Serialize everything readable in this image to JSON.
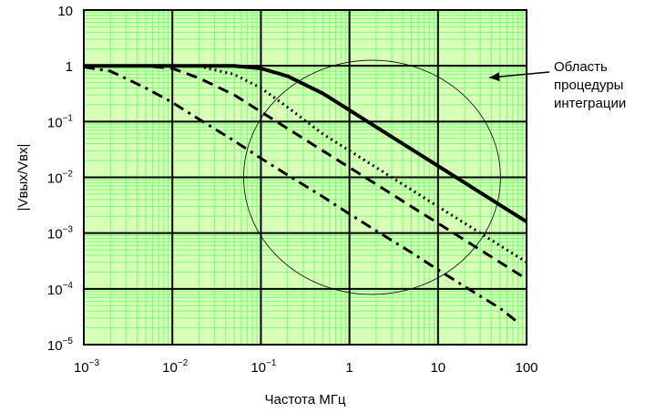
{
  "chart_data": {
    "type": "line",
    "xscale": "log",
    "yscale": "log",
    "xlim": [
      0.001,
      100
    ],
    "ylim": [
      1e-05,
      10
    ],
    "xlabel": "Частота МГц",
    "ylabel": "|Vвых/Vвх|",
    "x_ticks": [
      {
        "value": 0.001,
        "base": "10",
        "exp": "−3"
      },
      {
        "value": 0.01,
        "base": "10",
        "exp": "−2"
      },
      {
        "value": 0.1,
        "base": "10",
        "exp": "−1"
      },
      {
        "value": 1,
        "base": "1",
        "exp": ""
      },
      {
        "value": 10,
        "base": "10",
        "exp": ""
      },
      {
        "value": 100,
        "base": "100",
        "exp": ""
      }
    ],
    "y_ticks": [
      {
        "value": 10,
        "base": "10",
        "exp": ""
      },
      {
        "value": 1,
        "base": "1",
        "exp": ""
      },
      {
        "value": 0.1,
        "base": "10",
        "exp": "−1"
      },
      {
        "value": 0.01,
        "base": "10",
        "exp": "−2"
      },
      {
        "value": 0.001,
        "base": "10",
        "exp": "−3"
      },
      {
        "value": 0.0001,
        "base": "10",
        "exp": "−4"
      },
      {
        "value": 1e-05,
        "base": "10",
        "exp": "−5"
      }
    ],
    "grid": true,
    "series": [
      {
        "style": "solid-thick",
        "x": [
          0.001,
          0.01,
          0.05,
          0.1,
          0.2,
          0.5,
          1,
          2,
          5,
          10,
          20,
          50,
          100
        ],
        "values": [
          1,
          1,
          1,
          0.9,
          0.65,
          0.32,
          0.16,
          0.08,
          0.032,
          0.016,
          0.008,
          0.0032,
          0.0016
        ]
      },
      {
        "style": "dotted",
        "x": [
          0.001,
          0.01,
          0.02,
          0.05,
          0.1,
          0.2,
          0.5,
          1,
          2,
          5,
          10,
          20,
          50,
          100
        ],
        "values": [
          1,
          1,
          0.98,
          0.7,
          0.4,
          0.18,
          0.06,
          0.03,
          0.015,
          0.006,
          0.003,
          0.0015,
          0.0006,
          0.0003
        ]
      },
      {
        "style": "dashed",
        "x": [
          0.001,
          0.005,
          0.01,
          0.02,
          0.05,
          0.1,
          0.2,
          0.5,
          1,
          2,
          5,
          10,
          20,
          50,
          100
        ],
        "values": [
          1,
          1,
          0.9,
          0.6,
          0.3,
          0.15,
          0.075,
          0.03,
          0.015,
          0.0075,
          0.003,
          0.0015,
          0.00075,
          0.0003,
          0.00015
        ]
      },
      {
        "style": "dash-dot",
        "x": [
          0.001,
          0.002,
          0.005,
          0.01,
          0.02,
          0.05,
          0.1,
          0.2,
          0.5,
          1,
          2,
          5,
          10,
          20,
          50,
          80
        ],
        "values": [
          0.95,
          0.8,
          0.4,
          0.22,
          0.11,
          0.045,
          0.022,
          0.011,
          0.0045,
          0.0022,
          0.0011,
          0.00045,
          0.00022,
          0.00011,
          4.5e-05,
          2.5e-05
        ]
      }
    ],
    "annotations": [
      {
        "text_lines": [
          "Область",
          "процедуры",
          "интеграции"
        ],
        "target": {
          "x": 30,
          "y": 1
        }
      }
    ],
    "integration_region": {
      "x_center": 1.8,
      "y_center": 0.01,
      "x_half_decades": 1.45,
      "y_half_decades": 2.1
    }
  },
  "colors": {
    "grid_minor": "#77ff77",
    "grid_major": "#000000",
    "plot_bg": "#d8ffb8",
    "curve": "#000000"
  }
}
